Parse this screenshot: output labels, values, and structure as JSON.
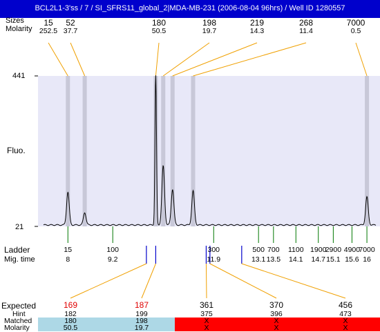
{
  "header": {
    "title": "BCL2L1-3'ss / 7 / SI_SFRS11_global_2|MDA-MB-231 (2006-08-04 96hrs) / Well ID 1280557"
  },
  "labels": {
    "peak_sizes": "Sizes",
    "molarity": "Molarity",
    "y_max": "441",
    "y_min": "21",
    "fluo": "Fluo.",
    "ladder": "Ladder",
    "mig_time": "Mig. time",
    "expected": "Expected",
    "hint": "Hint",
    "matched": "Matched",
    "molarity_bottom": "Molarity"
  },
  "colors": {
    "title_bg": "#0000cc",
    "plot_bg": "#e8e8f8",
    "band": "#c8c8d8",
    "connector": "#f0a000",
    "ladder_tick": "#007700",
    "marker": "#0000cc",
    "expected_highlight": "#e00000",
    "match_ok": "#add8e6",
    "match_fail": "#ff0000"
  },
  "chart_data": {
    "type": "line",
    "title": "BCL2L1-3'ss / 7 / SI_SFRS11_global_2|MDA-MB-231 (2006-08-04 96hrs) / Well ID 1280557",
    "ylabel": "Fluo.",
    "ylim": [
      21,
      441
    ],
    "peaks": [
      {
        "size": "15",
        "molarity": "252.5",
        "mig_time": 8.0,
        "height": 92
      },
      {
        "size": "52",
        "molarity": "37.7",
        "mig_time": 8.45,
        "height": 35
      },
      {
        "size": "180",
        "molarity": "50.5",
        "mig_time": 10.35,
        "height": 418
      },
      {
        "size": "198",
        "molarity": "19.7",
        "mig_time": 10.55,
        "height": 165
      },
      {
        "size": "219",
        "molarity": "14.3",
        "mig_time": 10.8,
        "height": 100
      },
      {
        "size": "268",
        "molarity": "11.4",
        "mig_time": 11.35,
        "height": 95
      },
      {
        "size": "7000",
        "molarity": "0.5",
        "mig_time": 16.0,
        "height": 78
      }
    ],
    "ladder": [
      {
        "size": "15",
        "mig_time": "8"
      },
      {
        "size": "100",
        "mig_time": "9.2"
      },
      {
        "size": "300",
        "mig_time": "11.9"
      },
      {
        "size": "500",
        "mig_time": "13.1"
      },
      {
        "size": "700",
        "mig_time": "13.5"
      },
      {
        "size": "1100",
        "mig_time": "14.1"
      },
      {
        "size": "1900",
        "mig_time": "14.7"
      },
      {
        "size": "2900",
        "mig_time": "15.1"
      },
      {
        "size": "4900",
        "mig_time": "15.6"
      },
      {
        "size": "7000",
        "mig_time": "16"
      }
    ],
    "expected": [
      {
        "expected": "169",
        "hint": "182",
        "matched": "180",
        "molarity": "50.5",
        "status": "ok",
        "highlight": true
      },
      {
        "expected": "187",
        "hint": "199",
        "matched": "198",
        "molarity": "19.7",
        "status": "ok",
        "highlight": true
      },
      {
        "expected": "361",
        "hint": "375",
        "matched": "X",
        "molarity": "X",
        "status": "fail",
        "highlight": false
      },
      {
        "expected": "370",
        "hint": "396",
        "matched": "X",
        "molarity": "X",
        "status": "fail",
        "highlight": false
      },
      {
        "expected": "456",
        "hint": "473",
        "matched": "X",
        "molarity": "X",
        "status": "fail",
        "highlight": false
      }
    ]
  }
}
